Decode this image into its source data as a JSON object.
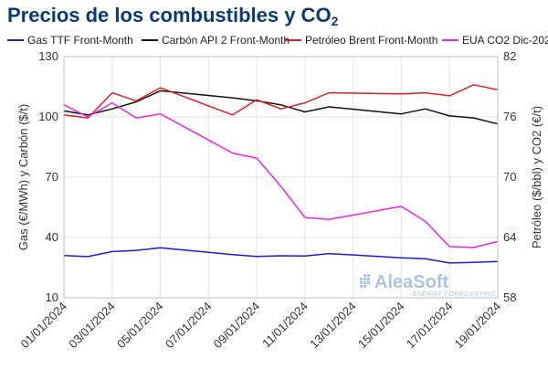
{
  "title_main": "Precios de los combustibles y CO",
  "title_sub": "2",
  "watermark": {
    "brand": "AleaSoft",
    "tagline": "ENERGY FORECASTING"
  },
  "colors": {
    "gas": "#1c1cd8",
    "coal": "#111111",
    "brent": "#e01e24",
    "co2": "#ee22ee",
    "grid": "#e3e3e3",
    "title": "#0a3a78"
  },
  "chart_data": {
    "type": "line",
    "title": "Precios de los combustibles y CO2",
    "ylabel_left": "Gas (€/MWh) y Carbón ($/t)",
    "ylabel_right": "Petróleo ($/bbl) y CO2 (€/t)",
    "ylim_left": [
      10,
      130
    ],
    "ylim_right": [
      58,
      82
    ],
    "yticks_left": [
      "10",
      "40",
      "70",
      "100",
      "130"
    ],
    "yticks_right": [
      "58",
      "64",
      "70",
      "76",
      "82"
    ],
    "xticks": [
      "01/01/2024",
      "03/01/2024",
      "05/01/2024",
      "07/01/2024",
      "09/01/2024",
      "11/01/2024",
      "13/01/2024",
      "15/01/2024",
      "17/01/2024",
      "19/01/2024"
    ],
    "legend_position": "top",
    "grid": true,
    "series": [
      {
        "name": "Gas TTF Front-Month",
        "axis": "left",
        "color": "#1c1cd8",
        "points": [
          [
            "01/01/2024",
            31.0
          ],
          [
            "02/01/2024",
            30.5
          ],
          [
            "03/01/2024",
            33.0
          ],
          [
            "04/01/2024",
            33.6
          ],
          [
            "05/01/2024",
            34.9
          ],
          [
            "08/01/2024",
            31.5
          ],
          [
            "09/01/2024",
            30.6
          ],
          [
            "10/01/2024",
            30.9
          ],
          [
            "11/01/2024",
            30.8
          ],
          [
            "12/01/2024",
            32.0
          ],
          [
            "15/01/2024",
            29.9
          ],
          [
            "16/01/2024",
            29.4
          ],
          [
            "17/01/2024",
            27.3
          ],
          [
            "18/01/2024",
            27.6
          ],
          [
            "19/01/2024",
            28.1
          ]
        ]
      },
      {
        "name": "Carbón API 2 Front-Month",
        "axis": "left",
        "color": "#111111",
        "points": [
          [
            "01/01/2024",
            103.0
          ],
          [
            "02/01/2024",
            101.0
          ],
          [
            "03/01/2024",
            104.0
          ],
          [
            "04/01/2024",
            107.5
          ],
          [
            "05/01/2024",
            113.0
          ],
          [
            "08/01/2024",
            109.5
          ],
          [
            "09/01/2024",
            108.0
          ],
          [
            "10/01/2024",
            106.0
          ],
          [
            "11/01/2024",
            102.5
          ],
          [
            "12/01/2024",
            105.0
          ],
          [
            "15/01/2024",
            101.5
          ],
          [
            "16/01/2024",
            104.0
          ],
          [
            "17/01/2024",
            100.5
          ],
          [
            "18/01/2024",
            99.5
          ],
          [
            "19/01/2024",
            96.5
          ]
        ]
      },
      {
        "name": "Petróleo Brent Front-Month",
        "axis": "right",
        "color": "#e01e24",
        "points": [
          [
            "01/01/2024",
            76.2
          ],
          [
            "02/01/2024",
            75.9
          ],
          [
            "03/01/2024",
            78.4
          ],
          [
            "04/01/2024",
            77.6
          ],
          [
            "05/01/2024",
            78.9
          ],
          [
            "08/01/2024",
            76.2
          ],
          [
            "09/01/2024",
            77.7
          ],
          [
            "10/01/2024",
            76.8
          ],
          [
            "11/01/2024",
            77.4
          ],
          [
            "12/01/2024",
            78.4
          ],
          [
            "15/01/2024",
            78.3
          ],
          [
            "16/01/2024",
            78.4
          ],
          [
            "17/01/2024",
            78.1
          ],
          [
            "18/01/2024",
            79.2
          ],
          [
            "19/01/2024",
            78.7
          ]
        ]
      },
      {
        "name": "EUA CO2 Dic-2024",
        "axis": "right",
        "color": "#ee22ee",
        "points": [
          [
            "01/01/2024",
            77.2
          ],
          [
            "02/01/2024",
            76.0
          ],
          [
            "03/01/2024",
            77.4
          ],
          [
            "04/01/2024",
            75.9
          ],
          [
            "05/01/2024",
            76.3
          ],
          [
            "08/01/2024",
            72.4
          ],
          [
            "09/01/2024",
            71.9
          ],
          [
            "10/01/2024",
            69.1
          ],
          [
            "11/01/2024",
            66.0
          ],
          [
            "12/01/2024",
            65.8
          ],
          [
            "15/01/2024",
            67.1
          ],
          [
            "16/01/2024",
            65.6
          ],
          [
            "17/01/2024",
            63.1
          ],
          [
            "18/01/2024",
            63.0
          ],
          [
            "19/01/2024",
            63.6
          ]
        ]
      }
    ]
  }
}
